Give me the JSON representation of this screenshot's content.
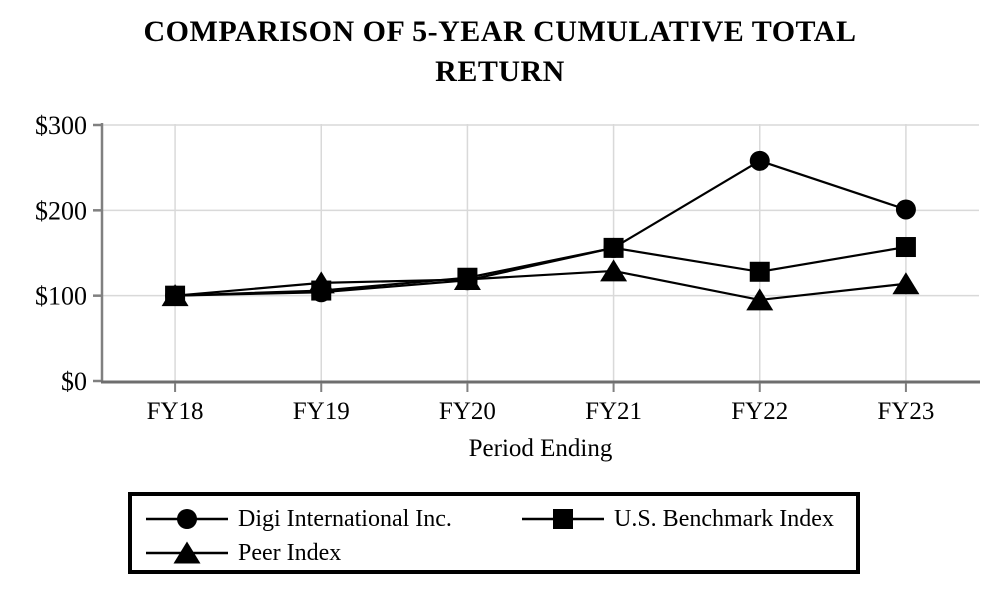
{
  "page": {
    "title_line1": "COMPARISON OF 5-YEAR CUMULATIVE TOTAL",
    "title_line2": "RETURN"
  },
  "chart_data": {
    "type": "line",
    "title": "COMPARISON OF 5-YEAR CUMULATIVE TOTAL RETURN",
    "xlabel": "Period Ending",
    "ylabel": "",
    "categories": [
      "FY18",
      "FY19",
      "FY20",
      "FY21",
      "FY22",
      "FY23"
    ],
    "ylim": [
      0,
      300
    ],
    "yticks": [
      0,
      100,
      200,
      300
    ],
    "ytick_labels": [
      "$0",
      "$100",
      "$200",
      "$300"
    ],
    "grid": true,
    "legend_position": "bottom-box",
    "series": [
      {
        "name": "Digi International Inc.",
        "marker": "circle",
        "color": "#000000",
        "values": [
          100,
          104,
          118,
          156,
          258,
          201
        ]
      },
      {
        "name": "U.S. Benchmark Index",
        "marker": "square",
        "color": "#000000",
        "values": [
          100,
          106,
          121,
          156,
          128,
          157
        ]
      },
      {
        "name": "Peer Index",
        "marker": "triangle",
        "color": "#000000",
        "values": [
          100,
          115,
          119,
          129,
          95,
          114
        ]
      }
    ],
    "colors": {
      "gridline": "#d9d9d9",
      "y_axis": "#808080",
      "x_axis": "#6e6e6e",
      "tick": "#808080",
      "text": "#000000",
      "background": "#ffffff"
    }
  }
}
